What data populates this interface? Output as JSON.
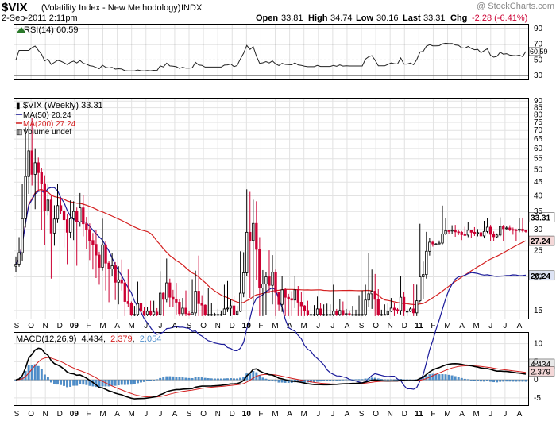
{
  "header": {
    "symbol": "$VIX",
    "name": "(Volatility Index - New Methodology)",
    "exchange": "INDX",
    "date": "2-Sep-2011 2:11pm",
    "watermark": "@ StockCharts.com",
    "quote": [
      {
        "label": "Open",
        "value": "33.81"
      },
      {
        "label": "High",
        "value": "34.74"
      },
      {
        "label": "Low",
        "value": "30.16"
      },
      {
        "label": "Last",
        "value": "33.31"
      },
      {
        "label": "Chg",
        "value": "-2.28 (-6.41%)",
        "down": true
      }
    ]
  },
  "rsi": {
    "label": "RSI(14) 60.59",
    "axis": [
      "90",
      "70",
      "50",
      "30"
    ],
    "current_label": "60.59"
  },
  "price": {
    "legend": [
      {
        "text": "$VIX (Weekly) 33.31",
        "color": "#000000"
      },
      {
        "text": "MA(50) 20.24",
        "color": "#1a1a9a"
      },
      {
        "text": "MA(200) 27.24",
        "color": "#d42020"
      },
      {
        "text": "Volume undef",
        "color": "#000000"
      }
    ],
    "axis": [
      "90",
      "85",
      "80",
      "75",
      "70",
      "65",
      "60",
      "55",
      "50",
      "45",
      "40",
      "35",
      "30",
      "25",
      "20",
      "15"
    ],
    "tags": {
      "last": "33.31",
      "ma200": "27.24",
      "ma50": "20.24"
    }
  },
  "macd": {
    "label": "MACD(12,26,9)",
    "v1": "4.434",
    "v2": "2.379",
    "v3": "2.054",
    "axis": [
      "10",
      "5",
      "0",
      "-5"
    ]
  },
  "xaxis": [
    "S",
    "O",
    "N",
    "D",
    "09",
    "F",
    "M",
    "A",
    "M",
    "J",
    "J",
    "A",
    "S",
    "O",
    "N",
    "D",
    "10",
    "F",
    "M",
    "A",
    "M",
    "J",
    "J",
    "A",
    "S",
    "O",
    "N",
    "D",
    "11",
    "F",
    "M",
    "A",
    "M",
    "J",
    "J",
    "A"
  ],
  "colors": {
    "down": "#cc0033",
    "up": "#000000",
    "ma50": "#1a1a9a",
    "ma200": "#d42020",
    "hist": "#4f8fcc"
  },
  "chart_data": {
    "type": "candlestick",
    "interval": "weekly",
    "period": "Sep 2008 - Sep 2011",
    "yscale": "log",
    "ylim": [
      14,
      92
    ],
    "price_start": 21.9,
    "ohlc_deltas": [
      [
        0,
        1.5,
        -1.1,
        0.4
      ],
      [
        0,
        3.5,
        -0.5,
        2.3
      ],
      [
        0,
        11.4,
        -1.6,
        8.3
      ],
      [
        0,
        24.6,
        -2.4,
        14.3
      ],
      [
        0,
        13.6,
        -6.5,
        11.6
      ],
      [
        0,
        19.1,
        -4.4,
        -10.7
      ],
      [
        0,
        7.0,
        -12.4,
        5.0
      ],
      [
        0,
        2.4,
        -7.3,
        -4.3
      ],
      [
        0,
        2.1,
        -14.5,
        -4.4
      ],
      [
        0,
        3.3,
        -9.0,
        -9.2
      ],
      [
        0,
        5.5,
        -1.4,
        3.4
      ],
      [
        0,
        1.8,
        -9.4,
        -9.5
      ],
      [
        0,
        4.1,
        -3.0,
        3.7
      ],
      [
        0,
        7.6,
        -1.1,
        4.0
      ],
      [
        0,
        2.6,
        -1.0,
        -1.6
      ],
      [
        0,
        0.5,
        -6.9,
        -2.6
      ],
      [
        0,
        1.7,
        -7.0,
        -3.3
      ],
      [
        0,
        5.6,
        -1.5,
        3.6
      ],
      [
        0,
        3.2,
        -5.5,
        2.1
      ],
      [
        0,
        1.2,
        -10.0,
        -3.0
      ],
      [
        0,
        4.9,
        -1.3,
        4.1
      ],
      [
        0,
        4.3,
        -3.2,
        -4.6
      ],
      [
        0,
        1.9,
        -4.6,
        -1.5
      ],
      [
        0,
        1.6,
        -4.2,
        -2.7
      ],
      [
        0,
        1.8,
        -5.1,
        -0.9
      ],
      [
        0,
        3.5,
        -4.3,
        -2.3
      ],
      [
        0,
        0.7,
        -3.0,
        -2.4
      ],
      [
        0,
        6.6,
        -0.6,
        4.6
      ],
      [
        0,
        0.8,
        -4.7,
        -3.8
      ],
      [
        0,
        0.4,
        -5.3,
        -1.1
      ],
      [
        0,
        2.5,
        -1.2,
        0.6
      ],
      [
        0,
        0.7,
        -2.7,
        -2.9
      ],
      [
        0,
        2.4,
        -3.3,
        0.4
      ],
      [
        0,
        3.7,
        -1.2,
        -0.5
      ],
      [
        0,
        0.7,
        -4.1,
        -2.8
      ],
      [
        0,
        5.1,
        -0.4,
        -0.3
      ],
      [
        0,
        0.3,
        -1.3,
        -2.6
      ],
      [
        0,
        1.1,
        -2.6,
        0.0
      ],
      [
        0,
        3.3,
        -1.0,
        1.4
      ],
      [
        0,
        4.3,
        -0.8,
        -1.0
      ],
      [
        0,
        0.6,
        -2.3,
        -0.5
      ],
      [
        0,
        0.6,
        -3.0,
        0.4
      ],
      [
        0,
        1.4,
        -1.9,
        -1.4
      ],
      [
        0,
        1.5,
        -0.7,
        0.3
      ],
      [
        0,
        0.5,
        -1.3,
        -0.6
      ],
      [
        0,
        3.6,
        -0.4,
        2.9
      ],
      [
        0,
        0.1,
        -4.0,
        -0.9
      ],
      [
        0,
        4.4,
        -0.4,
        2.5
      ],
      [
        0,
        0.7,
        -1.3,
        -2.2
      ],
      [
        0,
        1.1,
        -1.1,
        -0.3
      ],
      [
        0,
        2.5,
        -1.6,
        -0.4
      ],
      [
        0,
        0.4,
        -1.8,
        -1.5
      ],
      [
        0,
        1.4,
        -1.0,
        0.7
      ],
      [
        0,
        2.5,
        -0.4,
        -0.7
      ],
      [
        0,
        0.3,
        -1.2,
        -2.5
      ],
      [
        0,
        4.9,
        -0.1,
        0.2
      ],
      [
        0,
        3.4,
        -0.8,
        3.0
      ],
      [
        0,
        6.3,
        -2.4,
        -1.8
      ],
      [
        0,
        1.2,
        -4.1,
        -0.2
      ],
      [
        0,
        0.1,
        -3.4,
        -2.6
      ],
      [
        0,
        3.7,
        -0.6,
        -0.6
      ],
      [
        0,
        1.5,
        -1.1,
        -0.5
      ],
      [
        0,
        0.2,
        -2.3,
        -2.8
      ],
      [
        0,
        0.7,
        -2.1,
        -0.8
      ],
      [
        0,
        0.5,
        -1.2,
        -0.1
      ],
      [
        0,
        3.5,
        -0.1,
        0.7
      ],
      [
        0,
        4.0,
        -0.4,
        0.1
      ],
      [
        0,
        0.9,
        -1.2,
        0.3
      ],
      [
        0,
        1.4,
        -1.3,
        -1.6
      ],
      [
        0,
        0.7,
        -1.2,
        0.4
      ],
      [
        0,
        7.5,
        -0.1,
        2.5
      ],
      [
        0,
        4.0,
        -0.6,
        3.3
      ],
      [
        0,
        13.0,
        -0.6,
        8.6
      ],
      [
        0,
        12.1,
        -10.6,
        -2.0
      ],
      [
        0,
        7.1,
        -11.4,
        4.3
      ],
      [
        0,
        6.6,
        -5.9,
        -6.3
      ],
      [
        0,
        2.8,
        -7.6,
        -7.1
      ],
      [
        0,
        2.4,
        -4.1,
        0.6
      ],
      [
        0,
        0.9,
        -4.4,
        1.2
      ],
      [
        0,
        5.1,
        -1.2,
        -1.4
      ],
      [
        0,
        3.3,
        -2.8,
        2.2
      ],
      [
        0,
        0.5,
        -4.4,
        -3.3
      ],
      [
        0,
        0.1,
        -0.8,
        -1.7
      ],
      [
        0,
        2.2,
        -1.0,
        2.1
      ],
      [
        0,
        0.3,
        -3.3,
        -1.1
      ],
      [
        0,
        0.5,
        -2.4,
        -0.2
      ],
      [
        0,
        1.1,
        -2.2,
        -0.2
      ],
      [
        0,
        2.3,
        -1.1,
        1.5
      ],
      [
        0,
        0.6,
        -2.8,
        -1.8
      ],
      [
        0,
        1.5,
        -2.1,
        -0.5
      ],
      [
        0,
        0.1,
        -2.3,
        -0.6
      ],
      [
        0,
        1.3,
        -0.6,
        -0.5
      ],
      [
        0,
        1.1,
        -1.2,
        -1.1
      ],
      [
        0,
        1.2,
        -0.6,
        -0.1
      ],
      [
        0,
        1.7,
        -1.0,
        0.7
      ],
      [
        0,
        0.8,
        -3.5,
        -1.0
      ],
      [
        0,
        1.3,
        -0.5,
        -0.7
      ],
      [
        0,
        1.4,
        -1.6,
        -0.2
      ],
      [
        0,
        1.3,
        -0.3,
        -0.7
      ],
      [
        0,
        3.8,
        -0.4,
        0.4
      ],
      [
        0,
        0.3,
        -3.5,
        -0.6
      ],
      [
        0,
        1.5,
        -0.5,
        0.5
      ],
      [
        0,
        1.2,
        -1.1,
        -1.5
      ],
      [
        0,
        0.6,
        -1.6,
        0.1
      ],
      [
        0,
        0.4,
        -0.5,
        -1.3
      ],
      [
        0,
        1.1,
        -0.2,
        0.0
      ],
      [
        0,
        0.6,
        -0.7,
        0.0
      ],
      [
        0,
        2.6,
        -0.3,
        0.0
      ],
      [
        0,
        3.3,
        -0.2,
        -0.7
      ],
      [
        0,
        2.3,
        -0.4,
        1.9
      ],
      [
        0,
        7.3,
        -0.9,
        0.9
      ],
      [
        0,
        3.6,
        -2.1,
        0.4
      ],
      [
        0,
        2.8,
        -3.3,
        -1.2
      ],
      [
        0,
        1.5,
        -1.8,
        -2.1
      ],
      [
        0,
        0.6,
        -2.1,
        -0.8
      ],
      [
        0,
        1.3,
        -0.1,
        -1.2
      ],
      [
        0,
        1.1,
        -0.4,
        0.4
      ],
      [
        0,
        1.4,
        -0.1,
        0.4
      ],
      [
        0,
        0.7,
        -1.7,
        -0.2
      ],
      [
        0,
        0.2,
        -0.4,
        -0.1
      ],
      [
        0,
        3.4,
        -0.5,
        1.8
      ],
      [
        0,
        0.8,
        -3.3,
        -1.9
      ],
      [
        0,
        0.3,
        -0.7,
        0.0
      ],
      [
        0,
        0.3,
        -0.1,
        0.3
      ],
      [
        0,
        3.6,
        -0.5,
        -0.5
      ],
      [
        0,
        2.4,
        -0.8,
        1.6
      ],
      [
        0,
        11.5,
        -0.2,
        3.7
      ],
      [
        0,
        2.4,
        -3.5,
        0.4
      ],
      [
        0,
        4.5,
        -0.7,
        4.5
      ],
      [
        0,
        1.1,
        -0.9,
        2.0
      ],
      [
        0,
        0.4,
        -0.6,
        -0.4
      ],
      [
        0,
        0.2,
        -0.2,
        0.0
      ],
      [
        0,
        0.6,
        -0.1,
        0.2
      ],
      [
        0,
        7.9,
        -0.3,
        2.2
      ],
      [
        0,
        3.3,
        -0.3,
        0.8
      ],
      [
        0,
        0.2,
        -0.8,
        -0.1
      ],
      [
        0,
        1.3,
        -0.7,
        0.2
      ],
      [
        0,
        1.4,
        -1.2,
        -0.4
      ],
      [
        0,
        0.6,
        -0.7,
        -0.1
      ],
      [
        0,
        0.3,
        -1.3,
        -0.6
      ],
      [
        0,
        2.0,
        -0.1,
        -0.1
      ],
      [
        0,
        2.2,
        -0.5,
        1.2
      ],
      [
        0,
        0.1,
        -1.3,
        -0.5
      ],
      [
        0,
        1.3,
        -0.6,
        -0.3
      ],
      [
        0,
        0.9,
        -0.7,
        0.2
      ],
      [
        0,
        0.8,
        -0.2,
        -0.8
      ],
      [
        0,
        2.8,
        -0.6,
        1.1
      ],
      [
        0,
        2.5,
        -0.4,
        1.1
      ],
      [
        0,
        0.6,
        -1.7,
        -1.8
      ],
      [
        0,
        0.7,
        -1.0,
        -0.6
      ],
      [
        0,
        0.4,
        -0.3,
        0.4
      ],
      [
        0,
        2.5,
        -0.3,
        2.2
      ],
      [
        0,
        0.4,
        -3.0,
        -0.6
      ],
      [
        0,
        0.6,
        -0.2,
        0.2
      ],
      [
        0,
        0.7,
        -0.4,
        -0.4
      ],
      [
        0,
        0.5,
        -1.2,
        -0.1
      ],
      [
        0,
        0.3,
        -2.6,
        -0.1
      ],
      [
        0,
        3.0,
        -0.5,
        0.3
      ],
      [
        0,
        3.1,
        -0.4,
        -0.4
      ],
      [
        0,
        0.0,
        -0.3,
        -0.2
      ]
    ],
    "ma50_tail": 20.24,
    "ma200_tail": 27.24,
    "rsi_last": 60.59,
    "macd_last": [
      4.434,
      2.379,
      2.054
    ]
  }
}
